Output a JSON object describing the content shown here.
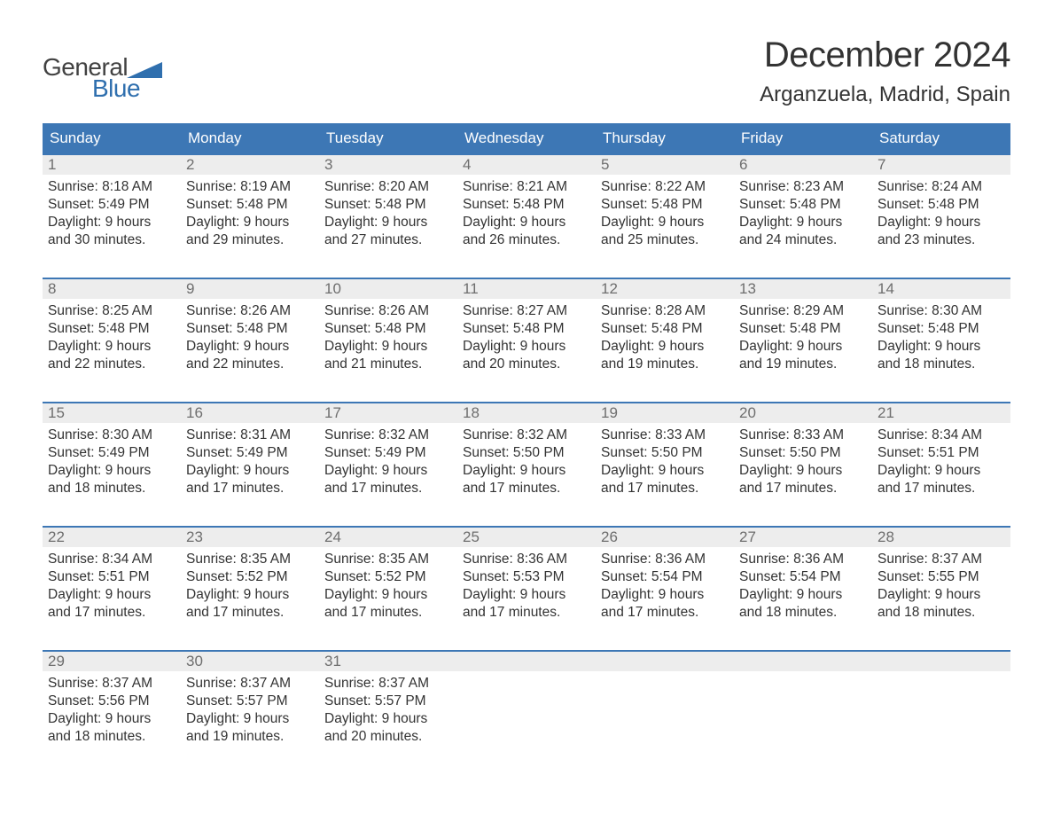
{
  "brand": {
    "word1": "General",
    "word2": "Blue"
  },
  "title": "December 2024",
  "location": "Arganzuela, Madrid, Spain",
  "colors": {
    "brand_blue": "#2f6fae",
    "header_bg": "#3d77b5",
    "daynum_bg": "#ededed",
    "daynum_text": "#6e6e6e",
    "body_text": "#333333",
    "page_bg": "#ffffff"
  },
  "typography": {
    "title_fontsize": 40,
    "location_fontsize": 24,
    "header_fontsize": 17,
    "body_fontsize": 15.5,
    "logo_fontsize": 28
  },
  "day_headers": [
    "Sunday",
    "Monday",
    "Tuesday",
    "Wednesday",
    "Thursday",
    "Friday",
    "Saturday"
  ],
  "weeks": [
    [
      {
        "n": "1",
        "sunrise": "8:18 AM",
        "sunset": "5:49 PM",
        "daylight": "9 hours and 30 minutes."
      },
      {
        "n": "2",
        "sunrise": "8:19 AM",
        "sunset": "5:48 PM",
        "daylight": "9 hours and 29 minutes."
      },
      {
        "n": "3",
        "sunrise": "8:20 AM",
        "sunset": "5:48 PM",
        "daylight": "9 hours and 27 minutes."
      },
      {
        "n": "4",
        "sunrise": "8:21 AM",
        "sunset": "5:48 PM",
        "daylight": "9 hours and 26 minutes."
      },
      {
        "n": "5",
        "sunrise": "8:22 AM",
        "sunset": "5:48 PM",
        "daylight": "9 hours and 25 minutes."
      },
      {
        "n": "6",
        "sunrise": "8:23 AM",
        "sunset": "5:48 PM",
        "daylight": "9 hours and 24 minutes."
      },
      {
        "n": "7",
        "sunrise": "8:24 AM",
        "sunset": "5:48 PM",
        "daylight": "9 hours and 23 minutes."
      }
    ],
    [
      {
        "n": "8",
        "sunrise": "8:25 AM",
        "sunset": "5:48 PM",
        "daylight": "9 hours and 22 minutes."
      },
      {
        "n": "9",
        "sunrise": "8:26 AM",
        "sunset": "5:48 PM",
        "daylight": "9 hours and 22 minutes."
      },
      {
        "n": "10",
        "sunrise": "8:26 AM",
        "sunset": "5:48 PM",
        "daylight": "9 hours and 21 minutes."
      },
      {
        "n": "11",
        "sunrise": "8:27 AM",
        "sunset": "5:48 PM",
        "daylight": "9 hours and 20 minutes."
      },
      {
        "n": "12",
        "sunrise": "8:28 AM",
        "sunset": "5:48 PM",
        "daylight": "9 hours and 19 minutes."
      },
      {
        "n": "13",
        "sunrise": "8:29 AM",
        "sunset": "5:48 PM",
        "daylight": "9 hours and 19 minutes."
      },
      {
        "n": "14",
        "sunrise": "8:30 AM",
        "sunset": "5:48 PM",
        "daylight": "9 hours and 18 minutes."
      }
    ],
    [
      {
        "n": "15",
        "sunrise": "8:30 AM",
        "sunset": "5:49 PM",
        "daylight": "9 hours and 18 minutes."
      },
      {
        "n": "16",
        "sunrise": "8:31 AM",
        "sunset": "5:49 PM",
        "daylight": "9 hours and 17 minutes."
      },
      {
        "n": "17",
        "sunrise": "8:32 AM",
        "sunset": "5:49 PM",
        "daylight": "9 hours and 17 minutes."
      },
      {
        "n": "18",
        "sunrise": "8:32 AM",
        "sunset": "5:50 PM",
        "daylight": "9 hours and 17 minutes."
      },
      {
        "n": "19",
        "sunrise": "8:33 AM",
        "sunset": "5:50 PM",
        "daylight": "9 hours and 17 minutes."
      },
      {
        "n": "20",
        "sunrise": "8:33 AM",
        "sunset": "5:50 PM",
        "daylight": "9 hours and 17 minutes."
      },
      {
        "n": "21",
        "sunrise": "8:34 AM",
        "sunset": "5:51 PM",
        "daylight": "9 hours and 17 minutes."
      }
    ],
    [
      {
        "n": "22",
        "sunrise": "8:34 AM",
        "sunset": "5:51 PM",
        "daylight": "9 hours and 17 minutes."
      },
      {
        "n": "23",
        "sunrise": "8:35 AM",
        "sunset": "5:52 PM",
        "daylight": "9 hours and 17 minutes."
      },
      {
        "n": "24",
        "sunrise": "8:35 AM",
        "sunset": "5:52 PM",
        "daylight": "9 hours and 17 minutes."
      },
      {
        "n": "25",
        "sunrise": "8:36 AM",
        "sunset": "5:53 PM",
        "daylight": "9 hours and 17 minutes."
      },
      {
        "n": "26",
        "sunrise": "8:36 AM",
        "sunset": "5:54 PM",
        "daylight": "9 hours and 17 minutes."
      },
      {
        "n": "27",
        "sunrise": "8:36 AM",
        "sunset": "5:54 PM",
        "daylight": "9 hours and 18 minutes."
      },
      {
        "n": "28",
        "sunrise": "8:37 AM",
        "sunset": "5:55 PM",
        "daylight": "9 hours and 18 minutes."
      }
    ],
    [
      {
        "n": "29",
        "sunrise": "8:37 AM",
        "sunset": "5:56 PM",
        "daylight": "9 hours and 18 minutes."
      },
      {
        "n": "30",
        "sunrise": "8:37 AM",
        "sunset": "5:57 PM",
        "daylight": "9 hours and 19 minutes."
      },
      {
        "n": "31",
        "sunrise": "8:37 AM",
        "sunset": "5:57 PM",
        "daylight": "9 hours and 20 minutes."
      },
      {
        "empty": true
      },
      {
        "empty": true
      },
      {
        "empty": true
      },
      {
        "empty": true
      }
    ]
  ],
  "labels": {
    "sunrise": "Sunrise: ",
    "sunset": "Sunset: ",
    "daylight": "Daylight: "
  }
}
